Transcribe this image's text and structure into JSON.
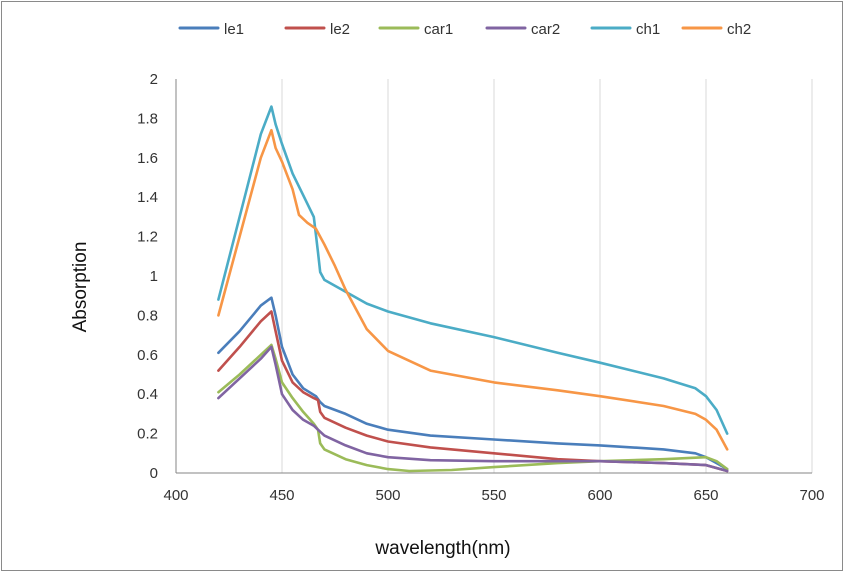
{
  "chart_data": {
    "type": "line",
    "title": "",
    "xlabel": "wavelength(nm)",
    "ylabel": "Absorption",
    "xlim": [
      400,
      700
    ],
    "ylim": [
      0,
      2
    ],
    "xticks": [
      400,
      450,
      500,
      550,
      600,
      650,
      700
    ],
    "yticks": [
      0,
      0.2,
      0.4,
      0.6,
      0.8,
      1,
      1.2,
      1.4,
      1.6,
      1.8,
      2
    ],
    "grid": "vertical",
    "legend_position": "top",
    "series": [
      {
        "name": "le1",
        "color": "#4a7ebb",
        "points": [
          [
            420,
            0.61
          ],
          [
            430,
            0.72
          ],
          [
            440,
            0.85
          ],
          [
            445,
            0.89
          ],
          [
            447,
            0.8
          ],
          [
            450,
            0.64
          ],
          [
            455,
            0.5
          ],
          [
            460,
            0.43
          ],
          [
            466,
            0.39
          ],
          [
            468,
            0.36
          ],
          [
            470,
            0.34
          ],
          [
            480,
            0.3
          ],
          [
            490,
            0.25
          ],
          [
            500,
            0.22
          ],
          [
            520,
            0.19
          ],
          [
            550,
            0.17
          ],
          [
            580,
            0.15
          ],
          [
            600,
            0.14
          ],
          [
            630,
            0.12
          ],
          [
            645,
            0.1
          ],
          [
            650,
            0.08
          ],
          [
            655,
            0.05
          ],
          [
            660,
            0.02
          ]
        ]
      },
      {
        "name": "le2",
        "color": "#c0504d",
        "points": [
          [
            420,
            0.52
          ],
          [
            430,
            0.64
          ],
          [
            440,
            0.77
          ],
          [
            445,
            0.82
          ],
          [
            447,
            0.72
          ],
          [
            450,
            0.57
          ],
          [
            455,
            0.46
          ],
          [
            460,
            0.41
          ],
          [
            465,
            0.38
          ],
          [
            467,
            0.37
          ],
          [
            468,
            0.31
          ],
          [
            470,
            0.28
          ],
          [
            480,
            0.23
          ],
          [
            490,
            0.19
          ],
          [
            500,
            0.16
          ],
          [
            520,
            0.13
          ],
          [
            550,
            0.1
          ],
          [
            580,
            0.07
          ],
          [
            600,
            0.06
          ],
          [
            630,
            0.05
          ],
          [
            650,
            0.04
          ],
          [
            660,
            0.01
          ]
        ]
      },
      {
        "name": "car1",
        "color": "#9bbb59",
        "points": [
          [
            420,
            0.41
          ],
          [
            430,
            0.5
          ],
          [
            440,
            0.6
          ],
          [
            445,
            0.65
          ],
          [
            447,
            0.58
          ],
          [
            450,
            0.46
          ],
          [
            455,
            0.38
          ],
          [
            460,
            0.31
          ],
          [
            465,
            0.25
          ],
          [
            467,
            0.22
          ],
          [
            468,
            0.15
          ],
          [
            470,
            0.12
          ],
          [
            480,
            0.07
          ],
          [
            490,
            0.04
          ],
          [
            500,
            0.02
          ],
          [
            510,
            0.01
          ],
          [
            530,
            0.015
          ],
          [
            550,
            0.03
          ],
          [
            580,
            0.05
          ],
          [
            600,
            0.06
          ],
          [
            630,
            0.07
          ],
          [
            650,
            0.08
          ],
          [
            655,
            0.06
          ],
          [
            660,
            0.02
          ]
        ]
      },
      {
        "name": "car2",
        "color": "#8064a2",
        "points": [
          [
            420,
            0.38
          ],
          [
            430,
            0.48
          ],
          [
            440,
            0.58
          ],
          [
            445,
            0.64
          ],
          [
            447,
            0.55
          ],
          [
            450,
            0.4
          ],
          [
            455,
            0.32
          ],
          [
            460,
            0.27
          ],
          [
            465,
            0.24
          ],
          [
            467,
            0.22
          ],
          [
            470,
            0.19
          ],
          [
            480,
            0.14
          ],
          [
            490,
            0.1
          ],
          [
            500,
            0.08
          ],
          [
            520,
            0.065
          ],
          [
            550,
            0.06
          ],
          [
            580,
            0.06
          ],
          [
            600,
            0.06
          ],
          [
            630,
            0.05
          ],
          [
            650,
            0.04
          ],
          [
            660,
            0.01
          ]
        ]
      },
      {
        "name": "ch1",
        "color": "#4bacc6",
        "points": [
          [
            420,
            0.88
          ],
          [
            430,
            1.3
          ],
          [
            440,
            1.72
          ],
          [
            445,
            1.86
          ],
          [
            447,
            1.77
          ],
          [
            450,
            1.67
          ],
          [
            455,
            1.52
          ],
          [
            460,
            1.41
          ],
          [
            465,
            1.3
          ],
          [
            467,
            1.12
          ],
          [
            468,
            1.02
          ],
          [
            470,
            0.98
          ],
          [
            480,
            0.92
          ],
          [
            490,
            0.86
          ],
          [
            500,
            0.82
          ],
          [
            520,
            0.76
          ],
          [
            550,
            0.69
          ],
          [
            580,
            0.61
          ],
          [
            600,
            0.56
          ],
          [
            630,
            0.48
          ],
          [
            645,
            0.43
          ],
          [
            650,
            0.39
          ],
          [
            655,
            0.32
          ],
          [
            660,
            0.2
          ]
        ]
      },
      {
        "name": "ch2",
        "color": "#f79646",
        "points": [
          [
            420,
            0.8
          ],
          [
            430,
            1.2
          ],
          [
            440,
            1.6
          ],
          [
            445,
            1.74
          ],
          [
            447,
            1.65
          ],
          [
            450,
            1.58
          ],
          [
            455,
            1.44
          ],
          [
            458,
            1.31
          ],
          [
            462,
            1.27
          ],
          [
            466,
            1.24
          ],
          [
            470,
            1.16
          ],
          [
            475,
            1.05
          ],
          [
            480,
            0.93
          ],
          [
            490,
            0.73
          ],
          [
            500,
            0.62
          ],
          [
            520,
            0.52
          ],
          [
            550,
            0.46
          ],
          [
            580,
            0.42
          ],
          [
            600,
            0.39
          ],
          [
            630,
            0.34
          ],
          [
            645,
            0.3
          ],
          [
            650,
            0.27
          ],
          [
            655,
            0.22
          ],
          [
            660,
            0.12
          ]
        ]
      }
    ]
  }
}
